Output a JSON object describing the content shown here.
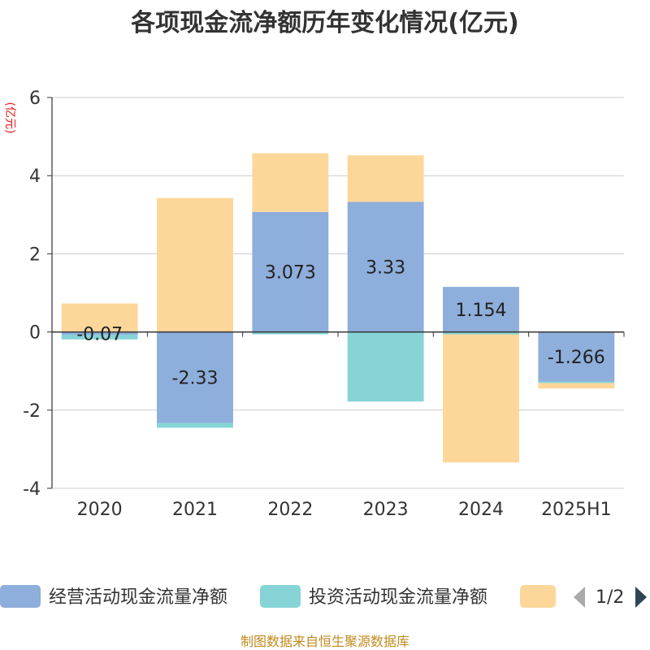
{
  "chart_data": {
    "type": "bar",
    "stacked": true,
    "title": "各项现金流净额历年变化情况(亿元)",
    "ylabel": "(亿元)",
    "categories": [
      "2020",
      "2021",
      "2022",
      "2023",
      "2024",
      "2025H1"
    ],
    "ylim": [
      -4,
      6
    ],
    "yticks": [
      -4,
      -2,
      0,
      2,
      4,
      6
    ],
    "grid": true,
    "series": [
      {
        "name": "经营活动现金流量净额",
        "color": "#8eaedb",
        "values": [
          -0.07,
          -2.33,
          3.073,
          3.33,
          1.154,
          -1.266
        ],
        "labels": [
          "-0.07",
          "-2.33",
          "3.073",
          "3.33",
          "1.154",
          "-1.266"
        ]
      },
      {
        "name": "投资活动现金流量净额",
        "color": "#86d4d6",
        "values": [
          -0.12,
          -0.12,
          -0.06,
          -1.78,
          -0.06,
          -0.04
        ]
      },
      {
        "name": "",
        "color": "#fdd79a",
        "values": [
          0.73,
          3.43,
          1.5,
          1.19,
          -3.28,
          -0.14
        ]
      }
    ],
    "legend": {
      "position": "bottom",
      "page": "1/2"
    },
    "source": "制图数据来自恒生聚源数据库"
  }
}
